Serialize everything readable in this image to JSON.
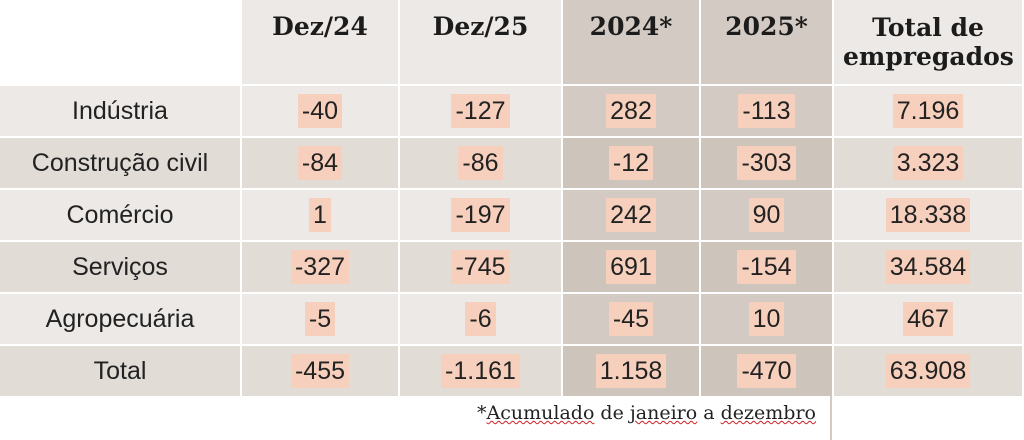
{
  "table": {
    "headers": [
      "Dez/24",
      "Dez/25",
      "2024*",
      "2025*",
      "Total de empregados"
    ],
    "rows": [
      {
        "label": "Indústria",
        "values": [
          "-40",
          "-127",
          "282",
          "-113",
          "7.196"
        ]
      },
      {
        "label": "Construção civil",
        "values": [
          "-84",
          "-86",
          "-12",
          "-303",
          "3.323"
        ]
      },
      {
        "label": "Comércio",
        "values": [
          "1",
          "-197",
          "242",
          "90",
          "18.338"
        ]
      },
      {
        "label": "Serviços",
        "values": [
          "-327",
          "-745",
          "691",
          "-154",
          "34.584"
        ]
      },
      {
        "label": "Agropecuária",
        "values": [
          "-5",
          "-6",
          "-45",
          "10",
          "467"
        ]
      },
      {
        "label": "Total",
        "values": [
          "-455",
          "-1.161",
          "1.158",
          "-470",
          "63.908"
        ]
      }
    ]
  },
  "footnote": {
    "prefix": "*",
    "word1": "Acumulado",
    "mid": " de ",
    "word2": "janeiro",
    "suffix": " a ",
    "word3": "dezembro"
  },
  "colors": {
    "light_cell": "#ede9e6",
    "alt_cell": "#e2dcd6",
    "dark_column": "#d3cbc3",
    "highlight": "#f7d0bd"
  }
}
